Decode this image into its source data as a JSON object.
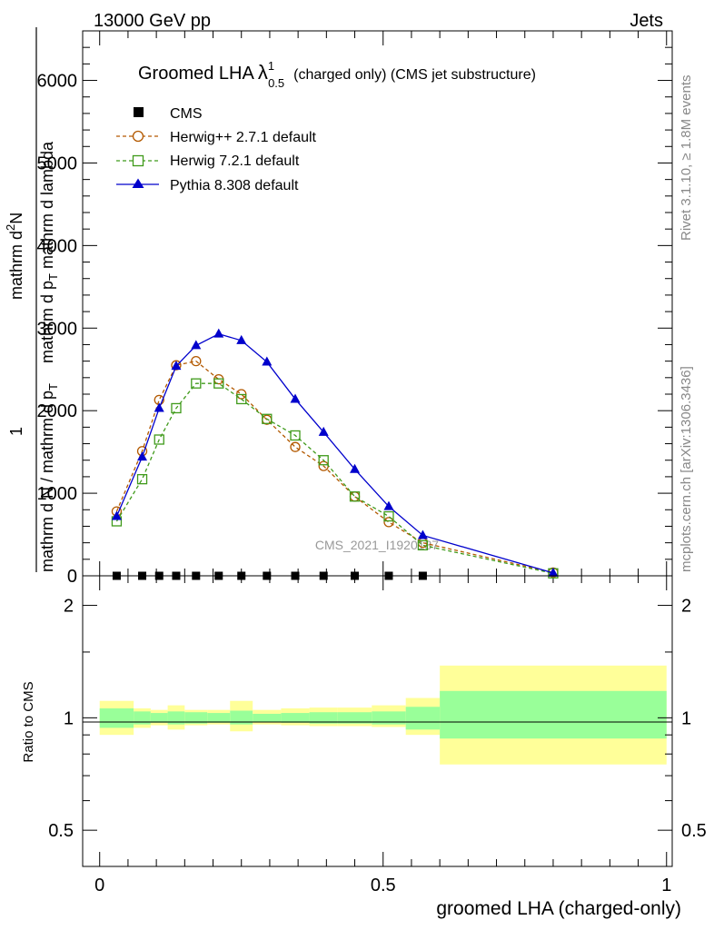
{
  "header": {
    "left": "13000 GeV pp",
    "right": "Jets"
  },
  "side": {
    "rivet": "Rivet 3.1.10, ≥ 1.8M events",
    "mcplots": "mcplots.cern.ch [arXiv:1306.3436]"
  },
  "watermark": "CMS_2021_I1920187",
  "title": {
    "main": "Groomed LHA",
    "lambda": "λ",
    "sup": "1",
    "sub": "0.5",
    "rest": "(charged only) (CMS jet substructure)"
  },
  "ylabel_main": {
    "num": "mathrm d",
    "num_sup": "2",
    "num_n": "N",
    "den": "mathrm d p",
    "den_sub": "T",
    "den_rest": " mathrm d lambda",
    "frac_1": "1",
    "frac_den": "mathrm d N / mathrm d p",
    "frac_den_sub": "T",
    "extra": "mathrm d N / mathrm d p"
  },
  "ylabel_ratio": "Ratio to CMS",
  "xlabel": "groomed LHA (charged-only)",
  "colors": {
    "herwigpp": "#b35900",
    "herwig7": "#3f9a1a",
    "pythia": "#0000cc",
    "band_inner": "#99ff99",
    "band_outer": "#ffff99"
  },
  "chart_data": [
    {
      "type": "line",
      "title": "Groomed LHA λ^1_0.5 (charged only) (CMS jet substructure)",
      "ylim": [
        0,
        6600
      ],
      "xlim": [
        -0.03,
        1.01
      ],
      "yticks": [
        0,
        1000,
        2000,
        3000,
        4000,
        5000,
        6000
      ],
      "ytick_labels": [
        "0",
        "1000",
        "2000",
        "3000",
        "4000",
        "5000",
        "6000"
      ],
      "legend_position": "top-left",
      "series": [
        {
          "name": "CMS",
          "marker": "square-filled",
          "x": [
            0.03,
            0.075,
            0.105,
            0.135,
            0.17,
            0.21,
            0.25,
            0.295,
            0.345,
            0.395,
            0.45,
            0.51,
            0.57
          ],
          "y": [
            0,
            0,
            0,
            0,
            0,
            0,
            0,
            0,
            0,
            0,
            0,
            0,
            0
          ]
        },
        {
          "name": "Herwig++ 2.7.1 default",
          "marker": "circle-open",
          "style": "dashed",
          "x": [
            0.03,
            0.075,
            0.105,
            0.135,
            0.17,
            0.21,
            0.25,
            0.295,
            0.345,
            0.395,
            0.45,
            0.51,
            0.57,
            0.8
          ],
          "y": [
            780,
            1510,
            2130,
            2550,
            2600,
            2380,
            2200,
            1890,
            1560,
            1330,
            960,
            650,
            400,
            40
          ]
        },
        {
          "name": "Herwig 7.2.1 default",
          "marker": "square-open",
          "style": "dashed",
          "x": [
            0.03,
            0.075,
            0.105,
            0.135,
            0.17,
            0.21,
            0.25,
            0.295,
            0.345,
            0.395,
            0.45,
            0.51,
            0.57,
            0.8
          ],
          "y": [
            660,
            1170,
            1650,
            2030,
            2330,
            2330,
            2140,
            1900,
            1700,
            1400,
            960,
            720,
            370,
            30
          ]
        },
        {
          "name": "Pythia 8.308 default",
          "marker": "triangle-filled",
          "style": "solid",
          "x": [
            0.03,
            0.075,
            0.105,
            0.135,
            0.17,
            0.21,
            0.25,
            0.295,
            0.345,
            0.395,
            0.45,
            0.51,
            0.57,
            0.8
          ],
          "y": [
            720,
            1440,
            2030,
            2540,
            2790,
            2930,
            2850,
            2590,
            2140,
            1740,
            1290,
            840,
            490,
            35
          ]
        }
      ]
    },
    {
      "type": "area",
      "ylabel": "Ratio to CMS",
      "xlabel": "groomed LHA (charged-only)",
      "log_y": true,
      "ylim": [
        0.4,
        2.4
      ],
      "xlim": [
        -0.03,
        1.01
      ],
      "yticks": [
        0.5,
        1,
        2
      ],
      "ytick_labels": [
        "0.5",
        "1",
        "2"
      ],
      "xticks": [
        0,
        0.5,
        1
      ],
      "xtick_labels": [
        "0",
        "0.5",
        "1"
      ],
      "bins": [
        0,
        0.06,
        0.09,
        0.12,
        0.15,
        0.19,
        0.23,
        0.27,
        0.32,
        0.37,
        0.42,
        0.48,
        0.54,
        0.6,
        1.0
      ],
      "series": [
        {
          "name": "stat_band",
          "low": [
            0.94,
            0.96,
            0.97,
            0.96,
            0.965,
            0.97,
            0.96,
            0.975,
            0.97,
            0.965,
            0.965,
            0.96,
            0.93,
            0.88
          ],
          "high": [
            1.06,
            1.04,
            1.03,
            1.04,
            1.035,
            1.03,
            1.045,
            1.025,
            1.03,
            1.035,
            1.035,
            1.04,
            1.07,
            1.18
          ]
        },
        {
          "name": "total_band",
          "low": [
            0.9,
            0.94,
            0.955,
            0.93,
            0.955,
            0.96,
            0.92,
            0.96,
            0.955,
            0.95,
            0.95,
            0.945,
            0.9,
            0.75
          ],
          "high": [
            1.11,
            1.06,
            1.05,
            1.08,
            1.05,
            1.05,
            1.11,
            1.05,
            1.06,
            1.065,
            1.065,
            1.08,
            1.13,
            1.38
          ]
        }
      ]
    }
  ]
}
